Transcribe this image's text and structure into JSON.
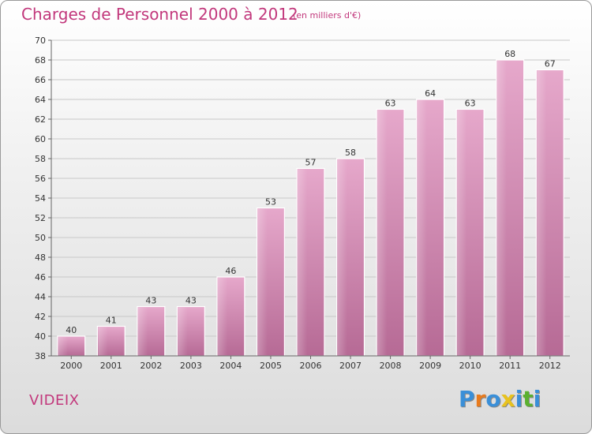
{
  "header": {
    "title": "Charges de Personnel 2000 à 2012",
    "subtitle": "(en milliers d'€)"
  },
  "footer": {
    "place": "VIDEIX",
    "logo": [
      "P",
      "r",
      "o",
      "x",
      "i",
      "t",
      "i"
    ],
    "logo_colors": [
      "#3a8fd8",
      "#e87b1e",
      "#3a8fd8",
      "#e8c21e",
      "#3a8fd8",
      "#5bb030",
      "#3a8fd8"
    ]
  },
  "chart_data": {
    "type": "bar",
    "title": "Charges de Personnel 2000 à 2012",
    "subtitle": "(en milliers d'€)",
    "categories": [
      "2000",
      "2001",
      "2002",
      "2003",
      "2004",
      "2005",
      "2006",
      "2007",
      "2008",
      "2009",
      "2010",
      "2011",
      "2012"
    ],
    "values": [
      40,
      41,
      43,
      43,
      46,
      53,
      57,
      58,
      63,
      64,
      63,
      68,
      67
    ],
    "ylim": [
      38,
      70
    ],
    "yticks": [
      38,
      40,
      42,
      44,
      46,
      48,
      50,
      52,
      54,
      56,
      58,
      60,
      62,
      64,
      66,
      68,
      70
    ],
    "grid": true,
    "bar_color": "#cc7aa6",
    "xlabel": "",
    "ylabel": ""
  }
}
